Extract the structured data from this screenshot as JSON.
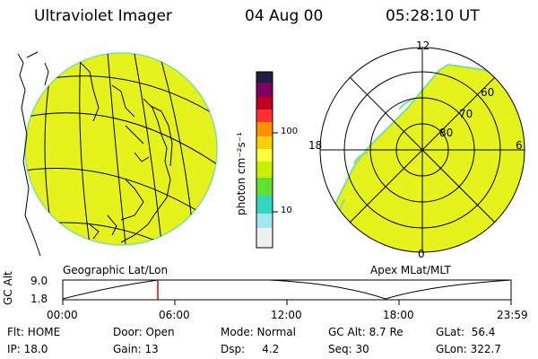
{
  "header": {
    "instrument": "Ultraviolet Imager",
    "date": "04 Aug 00",
    "time": "05:28:10 UT"
  },
  "panels": {
    "left_label": "Geographic Lat/Lon",
    "right_label": "Apex MLat/MLT"
  },
  "colorbar": {
    "unit_label": "photon cm⁻²s⁻¹",
    "ticks": [
      "100",
      "10"
    ],
    "colors": [
      "#202040",
      "#800060",
      "#c00020",
      "#ff3030",
      "#ff9000",
      "#ffd000",
      "#ffff40",
      "#c8f000",
      "#60e030",
      "#30d8c0",
      "#a0e8f0",
      "#f0f0f0"
    ]
  },
  "polar": {
    "mlt_labels": {
      "top": "12",
      "left": "18",
      "right": "6",
      "bottom": "0"
    },
    "lat_labels": [
      "60",
      "70",
      "80"
    ]
  },
  "timeline": {
    "axis_label": "GC Alt",
    "y_ticks": [
      "9.0",
      "1.8"
    ],
    "x_ticks": [
      "00:00",
      "06:00",
      "12:00",
      "18:00",
      "23:59"
    ],
    "marker_color": "#e00000",
    "marker_fraction": 0.228
  },
  "info": {
    "row1": {
      "flt": "Flt: HOME",
      "door": "Door: Open",
      "mode": "Mode: Normal",
      "gcalt": "GC Alt: 8.7 Re",
      "glat": "GLat:  56.4"
    },
    "row2": {
      "ip": "IP: 18.0",
      "gain": "Gain: 13",
      "dsp": "Dsp:     4.2",
      "seq": "Seq: 30",
      "glon": "GLon: 322.7"
    }
  },
  "colors": {
    "image_fill": "#e6f21c",
    "image_edge": "#7fe09a"
  }
}
